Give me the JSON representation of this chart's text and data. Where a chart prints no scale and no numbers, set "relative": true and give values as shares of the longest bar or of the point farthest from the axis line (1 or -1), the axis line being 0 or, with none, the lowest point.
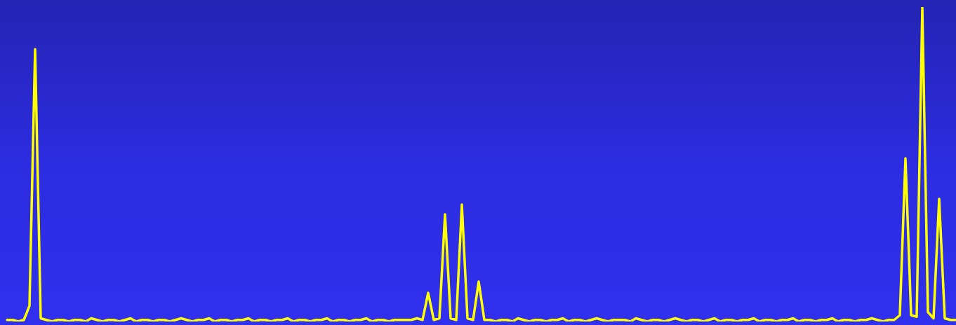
{
  "chart_data": {
    "type": "line",
    "relative": true,
    "color": "#ffff00",
    "categories": [
      null,
      null,
      null,
      null,
      null,
      null,
      null,
      null,
      null,
      null,
      null,
      null,
      null,
      null,
      null,
      null,
      null,
      null,
      null,
      null,
      null,
      null,
      null,
      null,
      null,
      null,
      null,
      null,
      null,
      null,
      null,
      null,
      null,
      null,
      null,
      null,
      null,
      null,
      null,
      null,
      null,
      null,
      null,
      null,
      null,
      null,
      null,
      null,
      null,
      null,
      null,
      null,
      null,
      null,
      null,
      null,
      null,
      null,
      null,
      null,
      null,
      null,
      null,
      null,
      null,
      null,
      null,
      null,
      null,
      null,
      null,
      null,
      null,
      null,
      null,
      null,
      null,
      null,
      null,
      null,
      null,
      null,
      null,
      null,
      null,
      null,
      null,
      null,
      null,
      null,
      null,
      null,
      null,
      null,
      null,
      null,
      null,
      null,
      null,
      null,
      null,
      null,
      null,
      null,
      null,
      null,
      null,
      null,
      null,
      null,
      null,
      null,
      null,
      null,
      null,
      null,
      null,
      null,
      null,
      null,
      null,
      null,
      null,
      null,
      null,
      null,
      null,
      null,
      null,
      null,
      null,
      null,
      null,
      null,
      null,
      null,
      null,
      null,
      null,
      null,
      null,
      null,
      null,
      null,
      null,
      null,
      null,
      null,
      null,
      null,
      null,
      null,
      null,
      null,
      null,
      null,
      null,
      null,
      null,
      null,
      null,
      null,
      null,
      null,
      null,
      null,
      null,
      null,
      null,
      null
    ],
    "values": [
      0.005,
      0.005,
      0,
      0.005,
      0.05,
      0.866,
      0.01,
      0.005,
      0,
      0.005,
      0.005,
      0,
      0.005,
      0.005,
      0,
      0.01,
      0.005,
      0,
      0.005,
      0.005,
      0,
      0.005,
      0.01,
      0,
      0.005,
      0.005,
      0,
      0.005,
      0.005,
      0,
      0.005,
      0.01,
      0.005,
      0,
      0.005,
      0.005,
      0.01,
      0,
      0.005,
      0.005,
      0,
      0.005,
      0.005,
      0.01,
      0,
      0.005,
      0.005,
      0,
      0.005,
      0.005,
      0.01,
      0,
      0.005,
      0.005,
      0,
      0.005,
      0.005,
      0.01,
      0,
      0.005,
      0.005,
      0,
      0.005,
      0.005,
      0.01,
      0,
      0.005,
      0.005,
      0,
      0.005,
      0.005,
      0.005,
      0.005,
      0.01,
      0.005,
      0.091,
      0.005,
      0.01,
      0.341,
      0.01,
      0.005,
      0.372,
      0.01,
      0.005,
      0.127,
      0.005,
      0.005,
      0,
      0.005,
      0.005,
      0,
      0.01,
      0.005,
      0,
      0.005,
      0.005,
      0,
      0.005,
      0.005,
      0.01,
      0,
      0.005,
      0.005,
      0,
      0.005,
      0.01,
      0.005,
      0,
      0.005,
      0.005,
      0.005,
      0,
      0.01,
      0.005,
      0,
      0.005,
      0.005,
      0,
      0.005,
      0.01,
      0.005,
      0,
      0.005,
      0.005,
      0,
      0.005,
      0.01,
      0,
      0.005,
      0.005,
      0,
      0.005,
      0.005,
      0.01,
      0,
      0.005,
      0.005,
      0,
      0.005,
      0.005,
      0.01,
      0,
      0.005,
      0.005,
      0,
      0.005,
      0.005,
      0.01,
      0,
      0.005,
      0.005,
      0,
      0.005,
      0.005,
      0.01,
      0.005,
      0,
      0.005,
      0.005,
      0.02,
      0.519,
      0.02,
      0.015,
      1,
      0.03,
      0.01,
      0.39,
      0.01,
      0.005,
      0.005
    ]
  }
}
